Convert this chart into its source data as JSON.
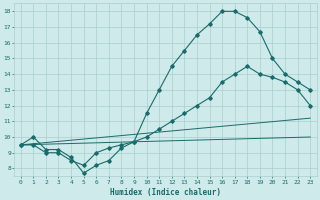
{
  "xlabel": "Humidex (Indice chaleur)",
  "xlim": [
    -0.5,
    23.5
  ],
  "ylim": [
    7.5,
    18.5
  ],
  "xticks": [
    0,
    1,
    2,
    3,
    4,
    5,
    6,
    7,
    8,
    9,
    10,
    11,
    12,
    13,
    14,
    15,
    16,
    17,
    18,
    19,
    20,
    21,
    22,
    23
  ],
  "yticks": [
    8,
    9,
    10,
    11,
    12,
    13,
    14,
    15,
    16,
    17,
    18
  ],
  "bg_color": "#ceeaea",
  "grid_color": "#aacece",
  "line_color": "#1a6b6b",
  "line1_x": [
    0,
    1,
    2,
    3,
    4,
    5,
    6,
    7,
    8,
    9,
    10,
    11,
    12,
    13,
    14,
    15,
    16,
    17,
    18,
    19,
    20,
    21,
    22,
    23
  ],
  "line1_y": [
    9.5,
    10.0,
    9.2,
    9.2,
    8.7,
    7.7,
    8.2,
    8.5,
    9.3,
    9.7,
    11.5,
    13.0,
    14.5,
    15.5,
    16.5,
    17.2,
    18.0,
    18.0,
    17.6,
    16.7,
    15.0,
    14.0,
    13.5,
    13.0
  ],
  "line2_x": [
    0,
    1,
    2,
    3,
    4,
    5,
    6,
    7,
    8,
    9,
    10,
    11,
    12,
    13,
    14,
    15,
    16,
    17,
    18,
    19,
    20,
    21,
    22,
    23
  ],
  "line2_y": [
    9.5,
    9.5,
    9.0,
    9.0,
    8.5,
    8.2,
    9.0,
    9.3,
    9.5,
    9.7,
    10.0,
    10.5,
    11.0,
    11.5,
    12.0,
    12.5,
    13.5,
    14.0,
    14.5,
    14.0,
    13.8,
    13.5,
    13.0,
    12.0
  ],
  "line3_x": [
    0,
    23
  ],
  "line3_y": [
    9.5,
    11.2
  ],
  "line4_x": [
    0,
    23
  ],
  "line4_y": [
    9.5,
    10.0
  ]
}
